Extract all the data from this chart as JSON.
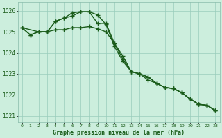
{
  "title": "Graphe pression niveau de la mer (hPa)",
  "x_labels": [
    "0",
    "1",
    "2",
    "3",
    "4",
    "5",
    "6",
    "7",
    "8",
    "9",
    "10",
    "11",
    "12",
    "13",
    "14",
    "15",
    "16",
    "17",
    "18",
    "19",
    "20",
    "21",
    "22",
    "23"
  ],
  "ylim": [
    1020.7,
    1026.4
  ],
  "yticks": [
    1021,
    1022,
    1023,
    1024,
    1025,
    1026
  ],
  "line1_x": [
    0,
    1,
    2,
    3,
    4,
    5,
    6,
    7,
    8,
    9,
    10,
    11,
    12,
    13,
    14,
    15,
    16,
    17,
    18,
    19,
    20,
    21,
    22,
    23
  ],
  "line1_y": [
    1025.2,
    1024.85,
    1025.0,
    1025.0,
    1025.1,
    1025.1,
    1025.2,
    1025.2,
    1025.25,
    1025.15,
    1025.0,
    1024.45,
    1023.85,
    1023.1,
    1023.0,
    1022.85,
    1022.55,
    1022.35,
    1022.3,
    1022.1,
    1021.8,
    1021.55,
    1021.5,
    1021.25
  ],
  "line2_x": [
    0,
    1,
    2,
    3,
    4,
    5,
    6,
    7,
    8,
    9,
    10,
    11,
    12,
    13,
    14,
    15,
    16,
    17,
    18,
    19,
    20,
    21,
    22,
    23
  ],
  "line2_y": [
    1025.2,
    1024.85,
    1025.0,
    1025.0,
    1025.5,
    1025.65,
    1025.9,
    1025.95,
    1025.95,
    1025.8,
    1025.35,
    1024.3,
    1023.6,
    1023.1,
    1023.0,
    1022.85,
    1022.55,
    1022.35,
    1022.3,
    1022.1,
    1021.8,
    1021.55,
    1021.5,
    1021.25
  ],
  "line3_x": [
    0,
    2,
    3,
    4,
    5,
    6,
    7,
    8,
    9,
    10,
    11,
    12,
    13,
    14,
    15,
    16,
    17,
    18,
    19,
    20,
    21,
    22,
    23
  ],
  "line3_y": [
    1025.2,
    1025.0,
    1025.0,
    1025.5,
    1025.65,
    1025.75,
    1025.95,
    1025.95,
    1025.4,
    1025.4,
    1024.45,
    1023.7,
    1023.1,
    1023.0,
    1022.7,
    1022.55,
    1022.35,
    1022.3,
    1022.1,
    1021.8,
    1021.55,
    1021.5,
    1021.25
  ],
  "bg_color": "#cceedd",
  "grid_color": "#99ccbb",
  "line_color": "#1a5c1a",
  "marker": "+",
  "marker_size": 4,
  "line_width": 1.0,
  "title_color": "#1a5c1a",
  "tick_color": "#1a5c1a"
}
